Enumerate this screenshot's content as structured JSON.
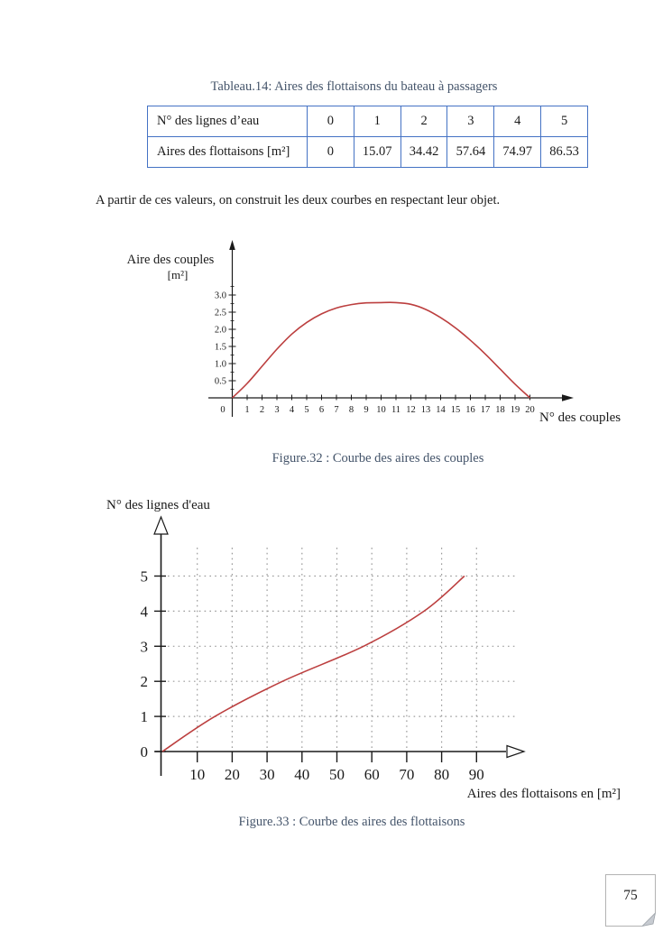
{
  "colors": {
    "accent_blue": "#44546A",
    "table_border": "#4472C4",
    "curve_red": "#bc3f3f",
    "grid_gray": "#9b9b9b"
  },
  "table_section": {
    "title": "Tableau.14: Aires des flottaisons du bateau à passagers",
    "rows": [
      {
        "header": "N° des lignes d’eau",
        "cells": [
          "0",
          "1",
          "2",
          "3",
          "4",
          "5"
        ]
      },
      {
        "header": "Aires des flottaisons [m²]",
        "cells": [
          "0",
          "15.07",
          "34.42",
          "57.64",
          "74.97",
          "86.53"
        ]
      }
    ]
  },
  "paragraph": "A partir de ces valeurs, on construit les deux courbes en respectant leur objet.",
  "figure32": {
    "caption": "Figure.32 : Courbe des aires des couples"
  },
  "figure33": {
    "caption": "Figure.33 : Courbe des aires des flottaisons"
  },
  "page": {
    "number": "75"
  },
  "chart_data": [
    {
      "type": "line",
      "title": "Courbe des aires des couples",
      "ylabel_line1": "Aire des couples",
      "ylabel_line2": "[m²]",
      "xlabel": "N° des couples",
      "x_ticks": [
        0,
        1,
        2,
        3,
        4,
        5,
        6,
        7,
        8,
        9,
        10,
        11,
        12,
        13,
        14,
        15,
        16,
        17,
        18,
        19,
        20
      ],
      "y_ticks": [
        "0.5",
        "1.0",
        "1.5",
        "2.0",
        "2.5",
        "3.0"
      ],
      "x": [
        0,
        1,
        2,
        3,
        4,
        5,
        6,
        7,
        8,
        9,
        10,
        11,
        12,
        13,
        14,
        15,
        16,
        17,
        18,
        19,
        20
      ],
      "y": [
        0,
        0.42,
        0.92,
        1.42,
        1.86,
        2.2,
        2.45,
        2.62,
        2.72,
        2.77,
        2.78,
        2.78,
        2.73,
        2.58,
        2.34,
        2.04,
        1.68,
        1.28,
        0.84,
        0.4,
        0
      ],
      "xlim": [
        0,
        20
      ],
      "ylim": [
        0,
        3.4
      ],
      "grid": false,
      "legend": "none",
      "line_color": "#bc3f3f"
    },
    {
      "type": "line",
      "title": "Courbe des aires des flottaisons",
      "ylabel": "N° des lignes d'eau",
      "xlabel": "Aires des flottaisons en [m²]",
      "x_ticks": [
        10,
        20,
        30,
        40,
        50,
        60,
        70,
        80,
        90
      ],
      "y_ticks": [
        0,
        1,
        2,
        3,
        4,
        5
      ],
      "x": [
        0,
        15.07,
        34.42,
        57.64,
        74.97,
        86.53
      ],
      "y": [
        0,
        1,
        2,
        3,
        4,
        5
      ],
      "xlim": [
        0,
        95
      ],
      "ylim": [
        0,
        5.8
      ],
      "grid": true,
      "legend": "none",
      "line_color": "#bc3f3f"
    }
  ]
}
